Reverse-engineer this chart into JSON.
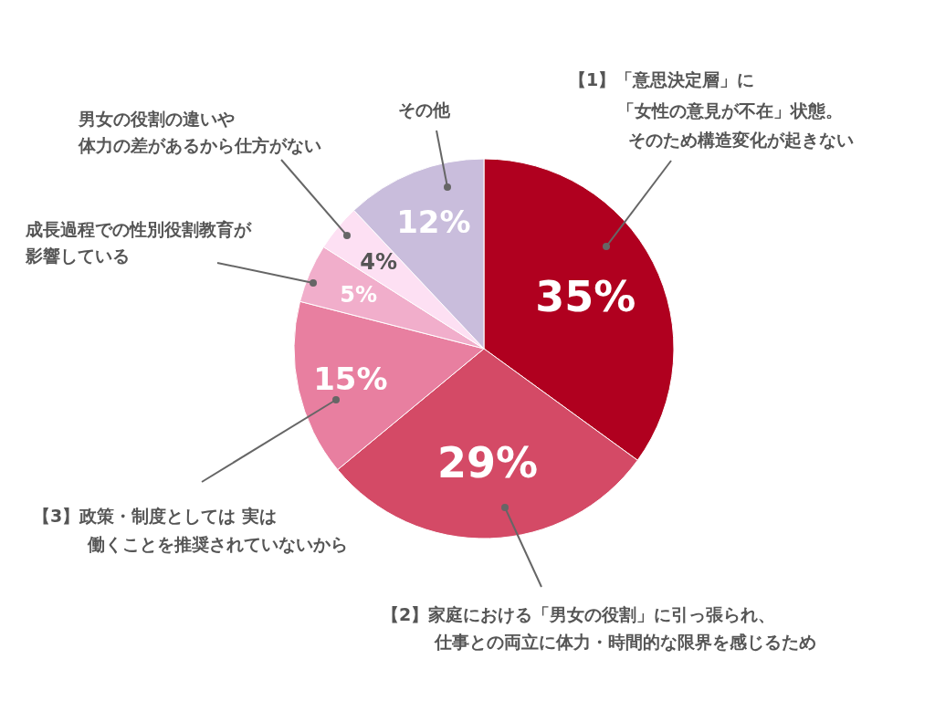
{
  "chart_data": {
    "type": "pie",
    "categories": [
      "【1】「意思決定層」に「女性の意見が不在」状態。そのため構造変化が起きない",
      "【2】家庭における「男女の役割」に引っ張られ、仕事との両立に体力・時間的な限界を感じるため",
      "【3】政策・制度としては 実は働くことを推奨されていないから",
      "成長過程での性別役割教育が影響している",
      "男女の役割の違いや体力の差があるから仕方がない",
      "その他"
    ],
    "values": [
      35,
      29,
      15,
      5,
      4,
      12
    ],
    "colors": [
      "#b0001f",
      "#d44a66",
      "#e87fa0",
      "#f1aecb",
      "#fde0f3",
      "#c9bddc"
    ],
    "value_labels": [
      "35%",
      "29%",
      "15%",
      "5%",
      "4%",
      "12%"
    ]
  }
}
